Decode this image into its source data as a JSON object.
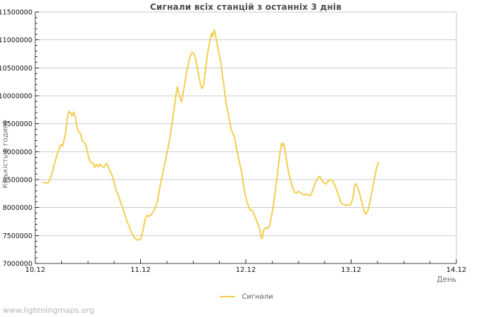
{
  "page": {
    "background": "#ffffff"
  },
  "watermark": {
    "text": "www.lightningmaps.org"
  },
  "colors": {
    "series_line": "#f5ce4e",
    "grid": "#cccccc",
    "border_light": "#c9c9c9",
    "axis_dark": "#444444",
    "tick": "#222222",
    "tick_label": "#111111",
    "title_text": "#4d4d4d",
    "axis_title_text": "#6e6e6e",
    "legend_text": "#5a5a5a",
    "watermark_text": "#b5b5b5"
  },
  "chart_data": {
    "type": "line",
    "title": "Сигнали всіх станцій з останніх 3 днів",
    "xlabel": "День",
    "ylabel": "Кількість в годину",
    "grid": "horizontal-major-only",
    "xlim_days": [
      0,
      4
    ],
    "ylim": [
      7000000,
      11500000
    ],
    "x_ticks": [
      {
        "day": 0,
        "label": "10.12"
      },
      {
        "day": 1,
        "label": "11.12"
      },
      {
        "day": 2,
        "label": "12.12"
      },
      {
        "day": 3,
        "label": "13.12"
      },
      {
        "day": 4,
        "label": "14.12"
      }
    ],
    "x_minor_step_days": 0.25,
    "y_ticks": [
      {
        "value": 7000000,
        "label": "7000000"
      },
      {
        "value": 7500000,
        "label": "7500000"
      },
      {
        "value": 8000000,
        "label": "8000000"
      },
      {
        "value": 8500000,
        "label": "8500000"
      },
      {
        "value": 9000000,
        "label": "9000000"
      },
      {
        "value": 9500000,
        "label": "9500000"
      },
      {
        "value": 10000000,
        "label": "10000000"
      },
      {
        "value": 10500000,
        "label": "10500000"
      },
      {
        "value": 11000000,
        "label": "11000000"
      },
      {
        "value": 11500000,
        "label": "11500000"
      }
    ],
    "y_minor_step": 100000,
    "legend": {
      "position": "bottom-center",
      "entries": [
        {
          "label": "Сигнали",
          "color": "#f5ce4e"
        }
      ]
    },
    "series": [
      {
        "name": "Сигнали",
        "color": "#f5ce4e",
        "points_day_value": [
          [
            0.08,
            8450000
          ],
          [
            0.1,
            8440000
          ],
          [
            0.12,
            8440000
          ],
          [
            0.14,
            8500000
          ],
          [
            0.165,
            8650000
          ],
          [
            0.185,
            8800000
          ],
          [
            0.2,
            8900000
          ],
          [
            0.22,
            9020000
          ],
          [
            0.235,
            9090000
          ],
          [
            0.25,
            9130000
          ],
          [
            0.26,
            9100000
          ],
          [
            0.27,
            9180000
          ],
          [
            0.285,
            9300000
          ],
          [
            0.3,
            9500000
          ],
          [
            0.31,
            9650000
          ],
          [
            0.32,
            9720000
          ],
          [
            0.335,
            9700000
          ],
          [
            0.35,
            9640000
          ],
          [
            0.365,
            9710000
          ],
          [
            0.38,
            9620000
          ],
          [
            0.4,
            9400000
          ],
          [
            0.415,
            9350000
          ],
          [
            0.43,
            9330000
          ],
          [
            0.445,
            9200000
          ],
          [
            0.46,
            9170000
          ],
          [
            0.47,
            9160000
          ],
          [
            0.485,
            9100000
          ],
          [
            0.5,
            8950000
          ],
          [
            0.52,
            8830000
          ],
          [
            0.535,
            8800000
          ],
          [
            0.55,
            8790000
          ],
          [
            0.565,
            8720000
          ],
          [
            0.58,
            8770000
          ],
          [
            0.6,
            8730000
          ],
          [
            0.615,
            8780000
          ],
          [
            0.63,
            8740000
          ],
          [
            0.65,
            8720000
          ],
          [
            0.665,
            8760000
          ],
          [
            0.68,
            8790000
          ],
          [
            0.695,
            8720000
          ],
          [
            0.71,
            8650000
          ],
          [
            0.73,
            8580000
          ],
          [
            0.75,
            8450000
          ],
          [
            0.77,
            8300000
          ],
          [
            0.79,
            8220000
          ],
          [
            0.81,
            8100000
          ],
          [
            0.83,
            7990000
          ],
          [
            0.85,
            7880000
          ],
          [
            0.87,
            7760000
          ],
          [
            0.89,
            7670000
          ],
          [
            0.92,
            7530000
          ],
          [
            0.94,
            7470000
          ],
          [
            0.96,
            7430000
          ],
          [
            0.98,
            7420000
          ],
          [
            1.0,
            7430000
          ],
          [
            1.02,
            7560000
          ],
          [
            1.035,
            7700000
          ],
          [
            1.05,
            7830000
          ],
          [
            1.065,
            7860000
          ],
          [
            1.08,
            7840000
          ],
          [
            1.1,
            7870000
          ],
          [
            1.13,
            7950000
          ],
          [
            1.16,
            8100000
          ],
          [
            1.19,
            8430000
          ],
          [
            1.22,
            8700000
          ],
          [
            1.24,
            8870000
          ],
          [
            1.26,
            9050000
          ],
          [
            1.28,
            9270000
          ],
          [
            1.3,
            9500000
          ],
          [
            1.32,
            9780000
          ],
          [
            1.34,
            10050000
          ],
          [
            1.35,
            10160000
          ],
          [
            1.37,
            10000000
          ],
          [
            1.39,
            9890000
          ],
          [
            1.41,
            10100000
          ],
          [
            1.44,
            10450000
          ],
          [
            1.47,
            10700000
          ],
          [
            1.49,
            10780000
          ],
          [
            1.51,
            10750000
          ],
          [
            1.53,
            10600000
          ],
          [
            1.55,
            10400000
          ],
          [
            1.57,
            10200000
          ],
          [
            1.585,
            10130000
          ],
          [
            1.6,
            10200000
          ],
          [
            1.62,
            10500000
          ],
          [
            1.64,
            10800000
          ],
          [
            1.66,
            11000000
          ],
          [
            1.675,
            11120000
          ],
          [
            1.685,
            11060000
          ],
          [
            1.7,
            11180000
          ],
          [
            1.71,
            11120000
          ],
          [
            1.73,
            10900000
          ],
          [
            1.76,
            10630000
          ],
          [
            1.79,
            10210000
          ],
          [
            1.81,
            9900000
          ],
          [
            1.84,
            9610000
          ],
          [
            1.86,
            9400000
          ],
          [
            1.89,
            9270000
          ],
          [
            1.91,
            9080000
          ],
          [
            1.93,
            8890000
          ],
          [
            1.96,
            8640000
          ],
          [
            1.99,
            8260000
          ],
          [
            2.02,
            8050000
          ],
          [
            2.04,
            7960000
          ],
          [
            2.06,
            7950000
          ],
          [
            2.08,
            7870000
          ],
          [
            2.1,
            7780000
          ],
          [
            2.12,
            7680000
          ],
          [
            2.135,
            7600000
          ],
          [
            2.145,
            7470000
          ],
          [
            2.155,
            7450000
          ],
          [
            2.17,
            7600000
          ],
          [
            2.19,
            7640000
          ],
          [
            2.21,
            7630000
          ],
          [
            2.23,
            7700000
          ],
          [
            2.25,
            7900000
          ],
          [
            2.27,
            8150000
          ],
          [
            2.29,
            8450000
          ],
          [
            2.31,
            8750000
          ],
          [
            2.33,
            9050000
          ],
          [
            2.34,
            9150000
          ],
          [
            2.35,
            9110000
          ],
          [
            2.36,
            9150000
          ],
          [
            2.375,
            9000000
          ],
          [
            2.39,
            8800000
          ],
          [
            2.41,
            8600000
          ],
          [
            2.43,
            8450000
          ],
          [
            2.46,
            8280000
          ],
          [
            2.48,
            8260000
          ],
          [
            2.5,
            8290000
          ],
          [
            2.52,
            8260000
          ],
          [
            2.55,
            8230000
          ],
          [
            2.58,
            8240000
          ],
          [
            2.6,
            8210000
          ],
          [
            2.62,
            8230000
          ],
          [
            2.64,
            8330000
          ],
          [
            2.66,
            8450000
          ],
          [
            2.68,
            8520000
          ],
          [
            2.7,
            8560000
          ],
          [
            2.72,
            8500000
          ],
          [
            2.74,
            8440000
          ],
          [
            2.76,
            8420000
          ],
          [
            2.78,
            8470000
          ],
          [
            2.8,
            8500000
          ],
          [
            2.82,
            8490000
          ],
          [
            2.84,
            8420000
          ],
          [
            2.86,
            8330000
          ],
          [
            2.88,
            8220000
          ],
          [
            2.9,
            8100000
          ],
          [
            2.92,
            8060000
          ],
          [
            2.94,
            8050000
          ],
          [
            2.96,
            8040000
          ],
          [
            2.98,
            8040000
          ],
          [
            3.0,
            8060000
          ],
          [
            3.02,
            8200000
          ],
          [
            3.03,
            8350000
          ],
          [
            3.04,
            8430000
          ],
          [
            3.06,
            8380000
          ],
          [
            3.08,
            8250000
          ],
          [
            3.1,
            8110000
          ],
          [
            3.12,
            7960000
          ],
          [
            3.14,
            7880000
          ],
          [
            3.16,
            7950000
          ],
          [
            3.18,
            8100000
          ],
          [
            3.2,
            8300000
          ],
          [
            3.22,
            8500000
          ],
          [
            3.24,
            8700000
          ],
          [
            3.26,
            8810000
          ]
        ]
      }
    ]
  }
}
